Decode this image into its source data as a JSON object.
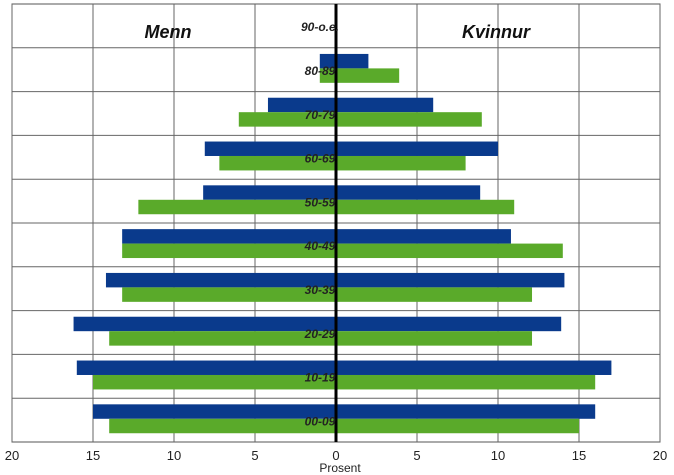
{
  "chart_data": {
    "type": "bar",
    "orientation": "horizontal-population-pyramid",
    "categories": [
      "00-09",
      "10-19",
      "20-29",
      "30-39",
      "40-49",
      "50-59",
      "60-69",
      "70-79",
      "80-89",
      "90-o.e."
    ],
    "xlabel": "Prosent",
    "left_label": "Menn",
    "right_label": "Kvinnur",
    "xlim": [
      -20,
      20
    ],
    "x_ticks": [
      20,
      15,
      10,
      5,
      0,
      5,
      10,
      15,
      20
    ],
    "grid": true,
    "series": [
      {
        "color": "#0a3a8c",
        "menn": [
          15.0,
          16.0,
          16.2,
          14.2,
          13.2,
          8.2,
          8.1,
          4.2,
          1.0,
          0.0
        ],
        "kvinnur": [
          16.0,
          17.0,
          13.9,
          14.1,
          10.8,
          8.9,
          10.0,
          6.0,
          2.0,
          0.0
        ]
      },
      {
        "color": "#5aaa2a",
        "menn": [
          14.0,
          15.0,
          14.0,
          13.2,
          13.2,
          12.2,
          7.2,
          6.0,
          1.0,
          0.0
        ],
        "kvinnur": [
          15.0,
          16.0,
          12.1,
          12.1,
          14.0,
          11.0,
          8.0,
          9.0,
          3.9,
          0.0
        ]
      }
    ]
  }
}
